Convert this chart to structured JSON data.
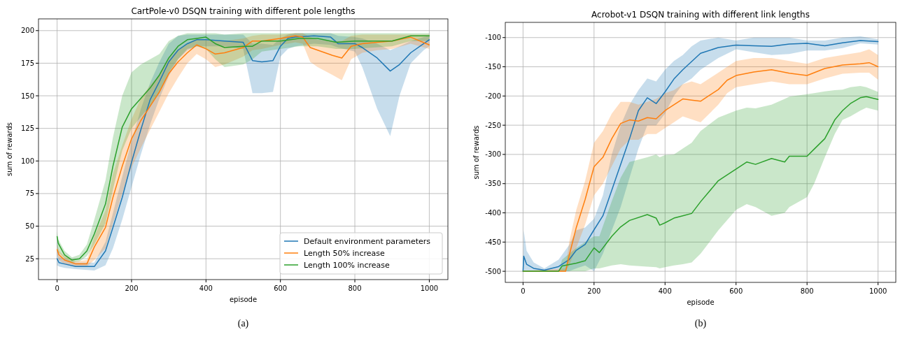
{
  "chart_data": [
    {
      "type": "line",
      "title": "CartPole-v0 DSQN training with different pole lengths",
      "xlabel": "episode",
      "ylabel": "sum of rewards",
      "xlim": [
        -50,
        1050
      ],
      "ylim": [
        9,
        209
      ],
      "xticks": [
        0,
        200,
        400,
        600,
        800,
        1000
      ],
      "yticks": [
        25,
        50,
        75,
        100,
        125,
        150,
        175,
        200
      ],
      "grid": true,
      "legend": "bottom right",
      "annotations": [
        "(a)"
      ],
      "series": [
        {
          "name": "Default environment parameters",
          "color": "#1f77b4",
          "x": [
            0,
            5,
            20,
            50,
            100,
            130,
            150,
            175,
            200,
            225,
            250,
            275,
            300,
            325,
            350,
            375,
            400,
            450,
            500,
            525,
            550,
            580,
            600,
            620,
            640,
            690,
            735,
            755,
            800,
            820,
            860,
            895,
            920,
            950,
            985,
            1000
          ],
          "values": [
            25,
            22,
            21,
            19,
            19,
            31,
            49,
            72,
            99,
            124,
            147,
            161,
            176,
            185,
            190,
            193,
            193,
            192,
            191,
            177,
            176,
            177,
            188,
            194,
            195,
            196,
            195,
            190,
            190,
            187,
            179,
            169,
            174,
            183,
            190,
            193
          ],
          "lower": [
            20,
            19,
            18,
            17,
            16,
            20,
            33,
            55,
            80,
            105,
            128,
            148,
            165,
            178,
            185,
            188,
            188,
            188,
            186,
            152,
            152,
            153,
            180,
            186,
            188,
            190,
            189,
            187,
            184,
            172,
            140,
            119,
            150,
            175,
            185,
            188
          ],
          "upper": [
            40,
            27,
            25,
            22,
            22,
            38,
            60,
            88,
            115,
            140,
            160,
            176,
            190,
            196,
            197,
            197,
            197,
            197,
            197,
            190,
            190,
            189,
            194,
            197,
            198,
            198,
            198,
            196,
            195,
            194,
            190,
            185,
            188,
            192,
            195,
            196
          ]
        },
        {
          "name": "Length 50% increase",
          "color": "#ff7f0e",
          "x": [
            0,
            5,
            20,
            50,
            80,
            100,
            130,
            150,
            175,
            200,
            225,
            250,
            275,
            300,
            325,
            350,
            375,
            400,
            425,
            450,
            500,
            525,
            550,
            600,
            640,
            660,
            680,
            700,
            740,
            765,
            790,
            820,
            860,
            900,
            950,
            1000
          ],
          "values": [
            32,
            28,
            24,
            21,
            21,
            34,
            49,
            72,
            96,
            117,
            131,
            142,
            153,
            167,
            176,
            183,
            189,
            186,
            182,
            183,
            187,
            192,
            192,
            194,
            196,
            195,
            187,
            185,
            181,
            179,
            188,
            190,
            191,
            192,
            195,
            189
          ],
          "lower": [
            28,
            24,
            21,
            19,
            19,
            24,
            33,
            52,
            75,
            95,
            110,
            124,
            138,
            152,
            164,
            175,
            182,
            178,
            172,
            174,
            180,
            185,
            186,
            189,
            191,
            190,
            176,
            172,
            166,
            162,
            178,
            183,
            185,
            186,
            190,
            186
          ],
          "upper": [
            36,
            31,
            27,
            23,
            24,
            42,
            62,
            90,
            112,
            132,
            148,
            158,
            166,
            178,
            186,
            190,
            194,
            193,
            192,
            192,
            194,
            196,
            197,
            197,
            198,
            198,
            195,
            193,
            192,
            192,
            196,
            197,
            197,
            197,
            197,
            197
          ]
        },
        {
          "name": "Length 100% increase",
          "color": "#2ca02c",
          "x": [
            0,
            3,
            20,
            40,
            60,
            80,
            100,
            130,
            150,
            175,
            200,
            225,
            250,
            275,
            300,
            325,
            350,
            375,
            400,
            425,
            450,
            500,
            525,
            550,
            600,
            650,
            700,
            750,
            800,
            850,
            900,
            950,
            1000
          ],
          "values": [
            42,
            37,
            28,
            24,
            25,
            31,
            44,
            67,
            96,
            126,
            140,
            148,
            156,
            166,
            179,
            188,
            193,
            194,
            195,
            190,
            187,
            188,
            188,
            192,
            192,
            194,
            194,
            191,
            192,
            192,
            192,
            196,
            196
          ],
          "lower": [
            35,
            30,
            25,
            22,
            23,
            27,
            36,
            52,
            78,
            108,
            125,
            134,
            142,
            152,
            168,
            178,
            186,
            188,
            186,
            178,
            172,
            174,
            178,
            184,
            186,
            188,
            188,
            186,
            186,
            187,
            188,
            192,
            192
          ],
          "upper": [
            46,
            40,
            31,
            26,
            28,
            36,
            55,
            85,
            118,
            150,
            168,
            174,
            178,
            182,
            192,
            196,
            198,
            198,
            198,
            198,
            197,
            198,
            198,
            198,
            198,
            198,
            198,
            198,
            198,
            198,
            198,
            198,
            198
          ]
        }
      ]
    },
    {
      "type": "line",
      "title": "Acrobot-v1 DSQN training with different link lengths",
      "xlabel": "episode",
      "ylabel": "sum of rewards",
      "xlim": [
        -50,
        1050
      ],
      "ylim": [
        -519,
        -74
      ],
      "xticks": [
        0,
        200,
        400,
        600,
        800,
        1000
      ],
      "yticks": [
        -500,
        -450,
        -400,
        -350,
        -300,
        -250,
        -200,
        -150,
        -100
      ],
      "grid": true,
      "annotations": [
        "(b)"
      ],
      "series": [
        {
          "color": "#1f77b4",
          "x": [
            0,
            2,
            10,
            30,
            60,
            100,
            130,
            150,
            175,
            200,
            225,
            250,
            275,
            300,
            325,
            350,
            375,
            400,
            425,
            450,
            475,
            500,
            550,
            600,
            650,
            700,
            750,
            800,
            850,
            900,
            950,
            1000
          ],
          "values": [
            -500,
            -474,
            -488,
            -495,
            -498,
            -492,
            -480,
            -464,
            -454,
            -429,
            -405,
            -361,
            -317,
            -273,
            -225,
            -203,
            -213,
            -193,
            -171,
            -155,
            -141,
            -127,
            -117,
            -113,
            -114,
            -115,
            -111,
            -110,
            -114,
            -109,
            -105,
            -107
          ],
          "lower": [
            -500,
            -500,
            -500,
            -500,
            -500,
            -500,
            -500,
            -495,
            -490,
            -500,
            -470,
            -430,
            -390,
            -340,
            -290,
            -250,
            -250,
            -230,
            -200,
            -180,
            -170,
            -155,
            -135,
            -120,
            -125,
            -130,
            -128,
            -122,
            -122,
            -118,
            -110,
            -112
          ],
          "upper": [
            -500,
            -430,
            -465,
            -485,
            -495,
            -480,
            -455,
            -430,
            -425,
            -410,
            -370,
            -300,
            -250,
            -215,
            -190,
            -170,
            -175,
            -155,
            -140,
            -130,
            -115,
            -105,
            -100,
            -105,
            -100,
            -100,
            -100,
            -105,
            -105,
            -100,
            -98,
            -103
          ]
        },
        {
          "color": "#ff7f0e",
          "x": [
            0,
            120,
            130,
            150,
            175,
            200,
            225,
            250,
            275,
            300,
            325,
            350,
            375,
            400,
            425,
            450,
            475,
            500,
            525,
            550,
            575,
            600,
            650,
            700,
            750,
            800,
            850,
            900,
            950,
            975,
            1000
          ],
          "values": [
            -500,
            -500,
            -473,
            -425,
            -377,
            -321,
            -305,
            -273,
            -247,
            -241,
            -243,
            -237,
            -239,
            -225,
            -215,
            -205,
            -207,
            -209,
            -199,
            -189,
            -173,
            -165,
            -159,
            -155,
            -161,
            -165,
            -153,
            -147,
            -145,
            -143,
            -150
          ],
          "lower": [
            -500,
            -500,
            -490,
            -460,
            -420,
            -370,
            -350,
            -320,
            -290,
            -275,
            -275,
            -265,
            -265,
            -255,
            -245,
            -235,
            -240,
            -245,
            -230,
            -215,
            -195,
            -185,
            -180,
            -175,
            -180,
            -180,
            -170,
            -162,
            -160,
            -160,
            -172
          ],
          "upper": [
            -500,
            -495,
            -450,
            -395,
            -345,
            -280,
            -260,
            -230,
            -210,
            -210,
            -215,
            -210,
            -205,
            -195,
            -190,
            -180,
            -175,
            -180,
            -170,
            -160,
            -150,
            -140,
            -135,
            -135,
            -140,
            -145,
            -135,
            -130,
            -125,
            -120,
            -130
          ]
        },
        {
          "color": "#2ca02c",
          "x": [
            0,
            100,
            110,
            150,
            175,
            200,
            215,
            250,
            275,
            300,
            350,
            375,
            385,
            400,
            425,
            450,
            475,
            500,
            550,
            600,
            630,
            655,
            700,
            737,
            750,
            800,
            820,
            850,
            878,
            900,
            922,
            950,
            967,
            1000
          ],
          "values": [
            -500,
            -500,
            -491,
            -486,
            -482,
            -460,
            -468,
            -440,
            -424,
            -413,
            -403,
            -409,
            -421,
            -417,
            -409,
            -405,
            -401,
            -381,
            -345,
            -325,
            -313,
            -317,
            -307,
            -313,
            -303,
            -303,
            -291,
            -273,
            -241,
            -225,
            -213,
            -203,
            -201,
            -206
          ],
          "lower": [
            -500,
            -500,
            -500,
            -500,
            -500,
            -495,
            -495,
            -490,
            -488,
            -490,
            -492,
            -493,
            -495,
            -493,
            -490,
            -488,
            -485,
            -470,
            -430,
            -395,
            -385,
            -390,
            -405,
            -400,
            -390,
            -373,
            -350,
            -305,
            -265,
            -241,
            -235,
            -225,
            -220,
            -225
          ],
          "upper": [
            -500,
            -500,
            -480,
            -460,
            -450,
            -440,
            -440,
            -380,
            -340,
            -313,
            -305,
            -300,
            -305,
            -301,
            -300,
            -290,
            -280,
            -260,
            -237,
            -225,
            -220,
            -221,
            -215,
            -205,
            -201,
            -197,
            -195,
            -192,
            -190,
            -189,
            -185,
            -183,
            -185,
            -193
          ]
        }
      ]
    }
  ]
}
